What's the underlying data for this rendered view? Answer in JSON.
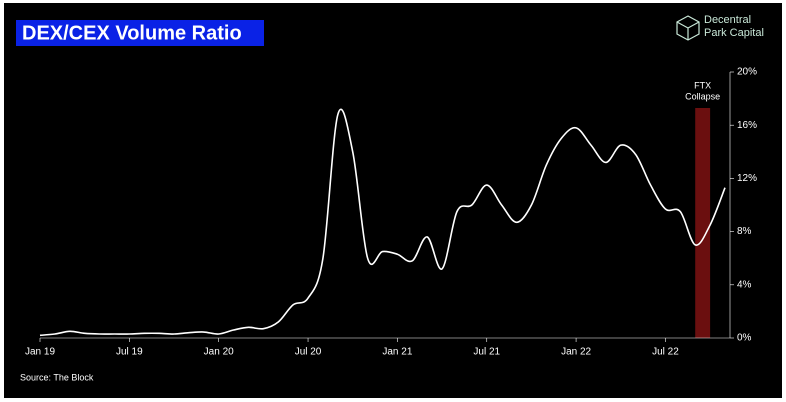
{
  "chart_data": {
    "type": "line",
    "title": "DEX/CEX Volume Ratio",
    "brand": [
      "Decentral",
      "Park Capital"
    ],
    "source": "Source: The Block",
    "x": [
      "2019-01",
      "2019-02",
      "2019-03",
      "2019-04",
      "2019-05",
      "2019-06",
      "2019-07",
      "2019-08",
      "2019-09",
      "2019-10",
      "2019-11",
      "2019-12",
      "2020-01",
      "2020-02",
      "2020-03",
      "2020-04",
      "2020-05",
      "2020-06",
      "2020-07",
      "2020-08",
      "2020-09",
      "2020-10",
      "2020-11",
      "2020-12",
      "2021-01",
      "2021-02",
      "2021-03",
      "2021-04",
      "2021-05",
      "2021-06",
      "2021-07",
      "2021-08",
      "2021-09",
      "2021-10",
      "2021-11",
      "2021-12",
      "2022-01",
      "2022-02",
      "2022-03",
      "2022-04",
      "2022-05",
      "2022-06",
      "2022-07",
      "2022-08",
      "2022-09",
      "2022-10",
      "2022-11"
    ],
    "series": [
      {
        "name": "DEX/CEX Volume Ratio",
        "color": "#ffffff",
        "values": [
          0.2,
          0.3,
          0.5,
          0.35,
          0.3,
          0.3,
          0.3,
          0.35,
          0.35,
          0.3,
          0.4,
          0.45,
          0.3,
          0.6,
          0.8,
          0.7,
          1.2,
          2.5,
          3.0,
          6.0,
          16.8,
          14.0,
          6.0,
          6.5,
          6.3,
          5.8,
          7.6,
          5.2,
          9.5,
          10.0,
          11.5,
          10.0,
          8.7,
          10.0,
          13.0,
          15.0,
          15.8,
          14.5,
          13.2,
          14.5,
          13.8,
          11.5,
          9.7,
          9.5,
          7.0,
          8.5,
          11.3
        ]
      }
    ],
    "xlim": [
      "2019-01",
      "2022-11"
    ],
    "xticks": [
      {
        "value": "2019-01",
        "label": "Jan 19"
      },
      {
        "value": "2019-07",
        "label": "Jul 19"
      },
      {
        "value": "2020-01",
        "label": "Jan 20"
      },
      {
        "value": "2020-07",
        "label": "Jul 20"
      },
      {
        "value": "2021-01",
        "label": "Jan 21"
      },
      {
        "value": "2021-07",
        "label": "Jul 21"
      },
      {
        "value": "2022-01",
        "label": "Jan 22"
      },
      {
        "value": "2022-07",
        "label": "Jul 22"
      }
    ],
    "ylim": [
      0,
      20
    ],
    "yticks": [
      {
        "value": 0,
        "label": "0%"
      },
      {
        "value": 4,
        "label": "4%"
      },
      {
        "value": 8,
        "label": "8%"
      },
      {
        "value": 12,
        "label": "12%"
      },
      {
        "value": 16,
        "label": "16%"
      },
      {
        "value": 20,
        "label": "20%"
      }
    ],
    "band": {
      "label": [
        "FTX",
        "Collapse"
      ],
      "start": "2022-09",
      "end": "2022-10",
      "color": "#6b0f0f"
    }
  }
}
